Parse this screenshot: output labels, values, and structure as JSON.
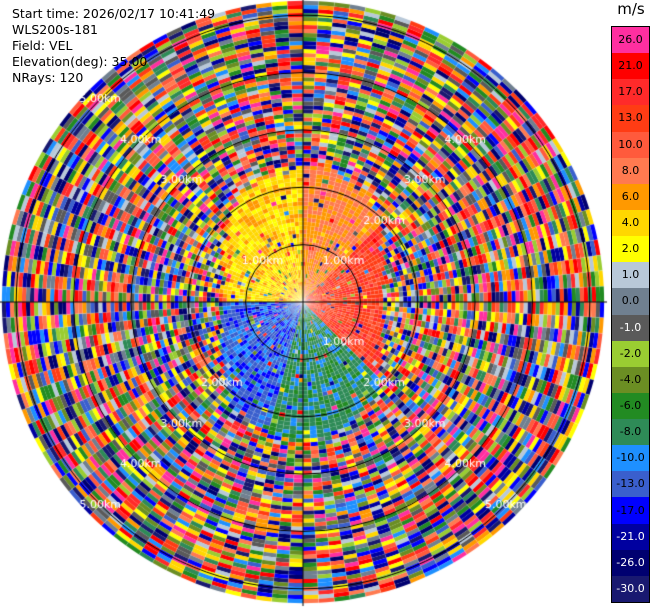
{
  "header": {
    "start_time": "Start time: 2026/02/17 10:41:49",
    "instrument": "WLS200s-181",
    "field": "Field: VEL",
    "elevation": "Elevation(deg): 35.00",
    "nrays": "NRays: 120"
  },
  "colorbar": {
    "unit": "m/s",
    "levels": [
      {
        "label": "26.0",
        "color": "#ff2fa0",
        "text": "#000000"
      },
      {
        "label": "21.0",
        "color": "#ff0000",
        "text": "#000000"
      },
      {
        "label": "17.0",
        "color": "#ff2a2a",
        "text": "#000000"
      },
      {
        "label": "13.0",
        "color": "#ff3c14",
        "text": "#000000"
      },
      {
        "label": "10.0",
        "color": "#ff5a3c",
        "text": "#000000"
      },
      {
        "label": "8.0",
        "color": "#ff7a50",
        "text": "#000000"
      },
      {
        "label": "6.0",
        "color": "#ff9900",
        "text": "#000000"
      },
      {
        "label": "4.0",
        "color": "#ffd700",
        "text": "#000000"
      },
      {
        "label": "2.0",
        "color": "#ffff00",
        "text": "#000000"
      },
      {
        "label": "1.0",
        "color": "#b8c8d8",
        "text": "#000000"
      },
      {
        "label": "0.0",
        "color": "#708090",
        "text": "#000000"
      },
      {
        "label": "-1.0",
        "color": "#5a5a5a",
        "text": "#ffffff"
      },
      {
        "label": "-2.0",
        "color": "#9acd32",
        "text": "#000000"
      },
      {
        "label": "-4.0",
        "color": "#6b8e23",
        "text": "#000000"
      },
      {
        "label": "-6.0",
        "color": "#228b22",
        "text": "#000000"
      },
      {
        "label": "-8.0",
        "color": "#2e8b57",
        "text": "#000000"
      },
      {
        "label": "-10.0",
        "color": "#1e90ff",
        "text": "#000000"
      },
      {
        "label": "-13.0",
        "color": "#3a5fcd",
        "text": "#000000"
      },
      {
        "label": "-17.0",
        "color": "#0000ff",
        "text": "#000000"
      },
      {
        "label": "-21.0",
        "color": "#0000a0",
        "text": "#ffffff"
      },
      {
        "label": "-26.0",
        "color": "#000070",
        "text": "#ffffff"
      },
      {
        "label": "-30.0",
        "color": "#191970",
        "text": "#ffffff"
      }
    ]
  },
  "chart_data": {
    "type": "heatmap",
    "projection": "polar-ppi",
    "field": "VEL",
    "unit": "m/s",
    "elevation_deg": 35.0,
    "n_rays": 120,
    "range_max_km": 5.3,
    "range_rings_km": [
      1.0,
      2.0,
      3.0,
      4.0,
      5.0
    ],
    "ring_labels": {
      "1.00km": [
        "1.00km",
        "1.00km",
        "1.00km"
      ],
      "2.00km": [
        "2.00km",
        "2.00km",
        "2.00km"
      ],
      "3.00km": [
        "3.00km",
        "3.00km",
        "3.00km",
        "3.00km"
      ],
      "4.00km": [
        "4.00km",
        "4.00km",
        "4.00km",
        "4.00km"
      ],
      "5.00km": [
        "5.00km",
        "5.00km",
        "5.00km"
      ]
    },
    "near_field_range_km": 2.1,
    "near_field_pattern": [
      {
        "azimuth_from_deg": 270,
        "azimuth_to_deg": 360,
        "dominant": "4.0 to 8.0 m/s (yellow/orange)"
      },
      {
        "azimuth_from_deg": 0,
        "azimuth_to_deg": 135,
        "dominant": "10.0 to 17.0 m/s (orange/red)"
      },
      {
        "azimuth_from_deg": 135,
        "azimuth_to_deg": 195,
        "dominant": "-8.0 to -13.0 m/s (blue/green)"
      },
      {
        "azimuth_from_deg": 195,
        "azimuth_to_deg": 270,
        "dominant": "-13.0 to -21.0 m/s (blue)"
      }
    ],
    "far_field": "noise (all colours) beyond ~2 km",
    "grid": true
  }
}
